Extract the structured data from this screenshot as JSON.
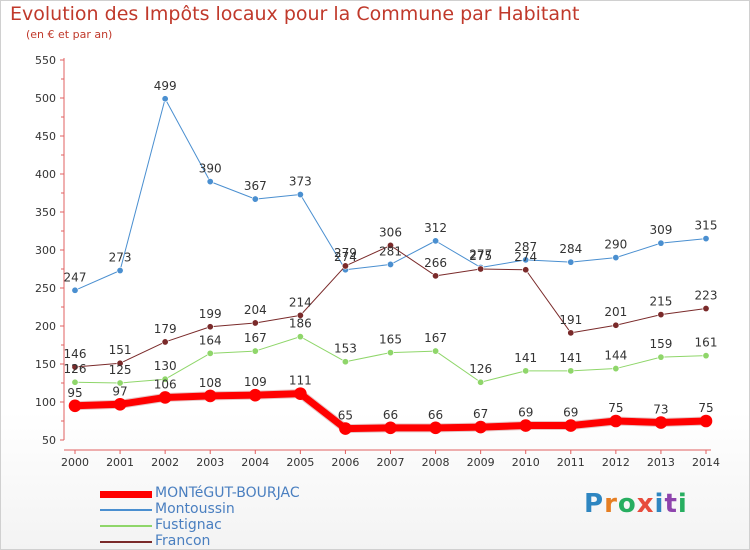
{
  "header": {
    "title": "Evolution des Impôts locaux pour la Commune par Habitant",
    "subtitle": "(en € et par an)"
  },
  "logo": {
    "letters": [
      "P",
      "r",
      "o",
      "x",
      "i",
      "t",
      "i"
    ],
    "colors": [
      "#2e86c1",
      "#e67e22",
      "#27ae60",
      "#e74c3c",
      "#2e86c1",
      "#8e44ad",
      "#27ae60"
    ]
  },
  "chart_data": {
    "type": "line",
    "title": "Evolution des Impôts locaux pour la Commune par Habitant",
    "subtitle": "(en € et par an)",
    "x": [
      "2000",
      "2001",
      "2002",
      "2003",
      "2004",
      "2005",
      "2006",
      "2007",
      "2008",
      "2009",
      "2010",
      "2011",
      "2012",
      "2013",
      "2014"
    ],
    "ylim": [
      50,
      550
    ],
    "yticks": [
      50,
      100,
      150,
      200,
      250,
      300,
      350,
      400,
      450,
      500,
      550
    ],
    "grid": false,
    "legend_position": "bottom-left",
    "series": [
      {
        "name": "MONTéGUT-BOURJAC",
        "color": "#ff0000",
        "width": 7,
        "values": [
          95,
          97,
          106,
          108,
          109,
          111,
          65,
          66,
          66,
          67,
          69,
          69,
          75,
          73,
          75
        ],
        "labels": [
          "95",
          "97",
          "106",
          "108",
          "109",
          "111",
          "65",
          "66",
          "66",
          "67",
          "69",
          "69",
          "75",
          "73",
          "75"
        ]
      },
      {
        "name": "Montoussin",
        "color": "#4a8fd0",
        "width": 1,
        "values": [
          247,
          273,
          499,
          390,
          367,
          373,
          274,
          281,
          312,
          277,
          287,
          284,
          290,
          309,
          315
        ],
        "labels": [
          "247",
          "273",
          "499",
          "390",
          "367",
          "373",
          "274",
          "281",
          "312",
          "277",
          "287",
          "284",
          "290",
          "309",
          "315"
        ]
      },
      {
        "name": "Fustignac",
        "color": "#8fd66a",
        "width": 1,
        "values": [
          126,
          125,
          130,
          164,
          167,
          186,
          153,
          165,
          167,
          126,
          141,
          141,
          144,
          159,
          161
        ],
        "labels": [
          "126",
          "125",
          "130",
          "164",
          "167",
          "186",
          "153",
          "165",
          "167",
          "126",
          "141",
          "141",
          "144",
          "159",
          "161"
        ]
      },
      {
        "name": "Francon",
        "color": "#7a2a2a",
        "width": 1,
        "values": [
          146,
          151,
          179,
          199,
          204,
          214,
          279,
          306,
          266,
          275,
          274,
          191,
          201,
          215,
          223
        ],
        "labels": [
          "146",
          "151",
          "179",
          "199",
          "204",
          "214",
          "279",
          "306",
          "266",
          "275",
          "274",
          "191",
          "201",
          "215",
          "223"
        ]
      }
    ]
  }
}
